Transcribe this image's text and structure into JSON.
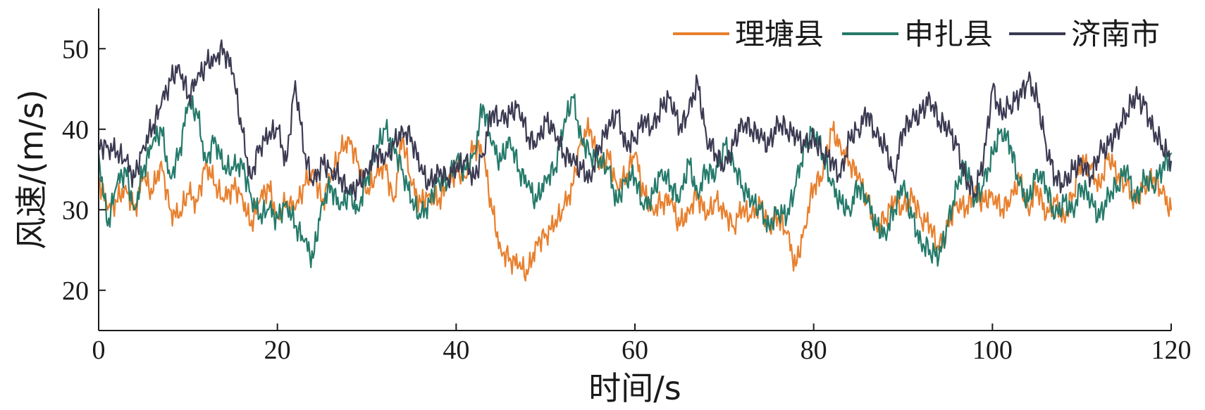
{
  "chart_data": {
    "type": "line",
    "title": "",
    "xlabel": "时间/s",
    "ylabel": "风速/(m/s)",
    "xlim": [
      0,
      120
    ],
    "ylim": [
      15,
      55
    ],
    "xticks": [
      0,
      20,
      40,
      60,
      80,
      100,
      120
    ],
    "yticks": [
      20,
      30,
      40,
      50
    ],
    "grid": false,
    "legend": "top-right",
    "x": [
      0,
      1,
      2,
      3,
      4,
      5,
      6,
      7,
      8,
      9,
      10,
      11,
      12,
      13,
      14,
      15,
      16,
      17,
      18,
      19,
      20,
      21,
      22,
      23,
      24,
      25,
      26,
      27,
      28,
      29,
      30,
      31,
      32,
      33,
      34,
      35,
      36,
      37,
      38,
      39,
      40,
      41,
      42,
      43,
      44,
      45,
      46,
      47,
      48,
      49,
      50,
      51,
      52,
      53,
      54,
      55,
      56,
      57,
      58,
      59,
      60,
      61,
      62,
      63,
      64,
      65,
      66,
      67,
      68,
      69,
      70,
      71,
      72,
      73,
      74,
      75,
      76,
      77,
      78,
      79,
      80,
      81,
      82,
      83,
      84,
      85,
      86,
      87,
      88,
      89,
      90,
      91,
      92,
      93,
      94,
      95,
      96,
      97,
      98,
      99,
      100,
      101,
      102,
      103,
      104,
      105,
      106,
      107,
      108,
      109,
      110,
      111,
      112,
      113,
      114,
      115,
      116,
      117,
      118,
      119,
      120
    ],
    "series": [
      {
        "name": "理塘县",
        "color": "#e8802e",
        "values": [
          34,
          30,
          31,
          33,
          30,
          34,
          32,
          36,
          30,
          29,
          32,
          31,
          36,
          33,
          31,
          33,
          32,
          28,
          31,
          33,
          29,
          31,
          30,
          33,
          35,
          31,
          34,
          37,
          39,
          36,
          32,
          34,
          36,
          31,
          39,
          33,
          31,
          32,
          31,
          33,
          35,
          34,
          38,
          37,
          30,
          25,
          24,
          23,
          22,
          26,
          27,
          28,
          30,
          33,
          39,
          40,
          35,
          37,
          33,
          34,
          37,
          32,
          30,
          31,
          31,
          28,
          30,
          32,
          29,
          31,
          30,
          28,
          30,
          29,
          31,
          28,
          29,
          27,
          23,
          28,
          33,
          34,
          40,
          38,
          36,
          34,
          31,
          28,
          29,
          31,
          30,
          32,
          29,
          28,
          25,
          28,
          31,
          30,
          32,
          31,
          32,
          30,
          31,
          34,
          30,
          33,
          29,
          31,
          29,
          32,
          36,
          35,
          33,
          37,
          34,
          33,
          31,
          33,
          34,
          32,
          30
        ]
      },
      {
        "name": "申扎县",
        "color": "#257a6a",
        "values": [
          37,
          28,
          33,
          35,
          30,
          35,
          38,
          40,
          34,
          37,
          43,
          42,
          36,
          39,
          35,
          35,
          36,
          32,
          29,
          30,
          29,
          31,
          28,
          26,
          24,
          31,
          33,
          30,
          32,
          30,
          34,
          37,
          40,
          38,
          35,
          31,
          29,
          31,
          34,
          33,
          36,
          35,
          37,
          43,
          38,
          36,
          39,
          35,
          33,
          31,
          34,
          35,
          40,
          44,
          39,
          37,
          36,
          35,
          31,
          34,
          34,
          30,
          32,
          35,
          33,
          31,
          36,
          32,
          35,
          34,
          38,
          36,
          33,
          31,
          30,
          28,
          30,
          29,
          33,
          38,
          40,
          37,
          33,
          31,
          30,
          33,
          31,
          28,
          27,
          30,
          33,
          29,
          26,
          25,
          24,
          28,
          33,
          36,
          31,
          33,
          37,
          40,
          38,
          33,
          31,
          35,
          33,
          29,
          31,
          30,
          33,
          31,
          29,
          32,
          33,
          35,
          31,
          34,
          33,
          35,
          37
        ]
      },
      {
        "name": "济南市",
        "color": "#3b3a52",
        "values": [
          38,
          38,
          37,
          36,
          34,
          38,
          40,
          43,
          46,
          48,
          44,
          46,
          48,
          49,
          50,
          47,
          40,
          34,
          38,
          39,
          40,
          36,
          46,
          37,
          33,
          36,
          35,
          34,
          32,
          33,
          35,
          37,
          36,
          38,
          40,
          39,
          35,
          33,
          35,
          34,
          35,
          36,
          34,
          37,
          42,
          41,
          42,
          43,
          39,
          38,
          41,
          40,
          37,
          36,
          35,
          34,
          38,
          40,
          42,
          38,
          39,
          41,
          40,
          43,
          44,
          40,
          42,
          46,
          39,
          37,
          35,
          38,
          41,
          40,
          39,
          38,
          41,
          40,
          39,
          38,
          39,
          37,
          36,
          34,
          39,
          40,
          42,
          39,
          38,
          34,
          40,
          41,
          42,
          44,
          41,
          40,
          38,
          34,
          32,
          36,
          45,
          42,
          43,
          44,
          46,
          44,
          38,
          34,
          33,
          35,
          36,
          34,
          37,
          38,
          40,
          42,
          44,
          43,
          40,
          38,
          36
        ]
      }
    ]
  }
}
